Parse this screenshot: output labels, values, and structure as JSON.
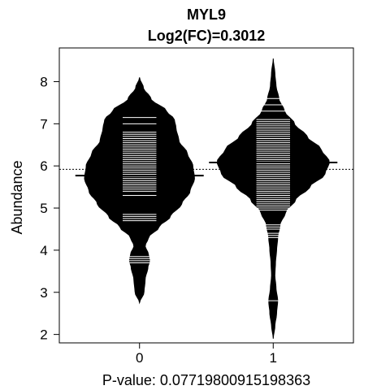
{
  "chart_data": {
    "type": "beanplot",
    "title": "MYL9",
    "subtitle": "Log2(FC)=0.3012",
    "xlabel": "P-value: 0.07719800915198363",
    "ylabel": "Abundance",
    "categories": [
      "0",
      "1"
    ],
    "x_ticks": [
      "0",
      "1"
    ],
    "y_ticks": [
      "2",
      "3",
      "4",
      "5",
      "6",
      "7",
      "8"
    ],
    "ylim": [
      1.8,
      8.8
    ],
    "xlim": [
      -0.6,
      1.6
    ],
    "overall_mean": 5.92,
    "grid": false,
    "legend": "none",
    "colors": {
      "bean": "#000000",
      "beanline": "#ffffff",
      "background": "#ffffff"
    },
    "beans": [
      {
        "category": "0",
        "mean": 5.77,
        "min": 2.75,
        "max": 8.1,
        "density": [
          [
            2.75,
            0.0
          ],
          [
            3.0,
            0.08
          ],
          [
            3.3,
            0.1
          ],
          [
            3.6,
            0.15
          ],
          [
            3.75,
            0.18
          ],
          [
            3.9,
            0.16
          ],
          [
            4.1,
            0.1
          ],
          [
            4.3,
            0.16
          ],
          [
            4.55,
            0.35
          ],
          [
            4.8,
            0.55
          ],
          [
            5.1,
            0.75
          ],
          [
            5.4,
            0.9
          ],
          [
            5.7,
            0.98
          ],
          [
            6.0,
            0.95
          ],
          [
            6.3,
            0.85
          ],
          [
            6.6,
            0.7
          ],
          [
            6.9,
            0.65
          ],
          [
            7.1,
            0.62
          ],
          [
            7.3,
            0.48
          ],
          [
            7.6,
            0.2
          ],
          [
            7.85,
            0.07
          ],
          [
            8.1,
            0.0
          ]
        ],
        "observations": [
          3.7,
          3.75,
          3.8,
          3.85,
          4.7,
          4.75,
          4.8,
          4.85,
          5.3,
          5.4,
          5.45,
          5.5,
          5.55,
          5.6,
          5.65,
          5.7,
          5.75,
          5.8,
          5.85,
          5.9,
          5.95,
          6.0,
          6.05,
          6.1,
          6.15,
          6.2,
          6.25,
          6.3,
          6.35,
          6.4,
          6.45,
          6.5,
          6.55,
          6.6,
          6.65,
          6.7,
          6.75,
          6.8,
          7.0,
          7.15
        ]
      },
      {
        "category": "1",
        "mean": 6.08,
        "min": 1.9,
        "max": 8.55,
        "density": [
          [
            1.9,
            0.0
          ],
          [
            2.2,
            0.03
          ],
          [
            2.5,
            0.06
          ],
          [
            2.8,
            0.08
          ],
          [
            3.1,
            0.05
          ],
          [
            3.4,
            0.03
          ],
          [
            3.7,
            0.04
          ],
          [
            4.0,
            0.06
          ],
          [
            4.3,
            0.08
          ],
          [
            4.6,
            0.12
          ],
          [
            4.9,
            0.22
          ],
          [
            5.2,
            0.4
          ],
          [
            5.5,
            0.65
          ],
          [
            5.8,
            0.92
          ],
          [
            6.1,
            1.0
          ],
          [
            6.4,
            0.85
          ],
          [
            6.7,
            0.6
          ],
          [
            7.0,
            0.38
          ],
          [
            7.3,
            0.2
          ],
          [
            7.6,
            0.1
          ],
          [
            7.9,
            0.05
          ],
          [
            8.2,
            0.03
          ],
          [
            8.55,
            0.0
          ]
        ],
        "observations": [
          2.8,
          4.3,
          4.35,
          4.4,
          4.5,
          4.55,
          4.6,
          4.95,
          5.0,
          5.05,
          5.1,
          5.15,
          5.2,
          5.25,
          5.3,
          5.35,
          5.4,
          5.45,
          5.5,
          5.55,
          5.6,
          5.65,
          5.7,
          5.75,
          5.8,
          5.85,
          5.9,
          5.95,
          6.0,
          6.05,
          6.1,
          6.15,
          6.2,
          6.25,
          6.3,
          6.35,
          6.4,
          6.45,
          6.5,
          6.55,
          6.6,
          6.65,
          6.7,
          6.75,
          6.8,
          6.85,
          6.9,
          6.95,
          7.0,
          7.05,
          7.1,
          7.3,
          7.45,
          7.6
        ]
      }
    ]
  }
}
